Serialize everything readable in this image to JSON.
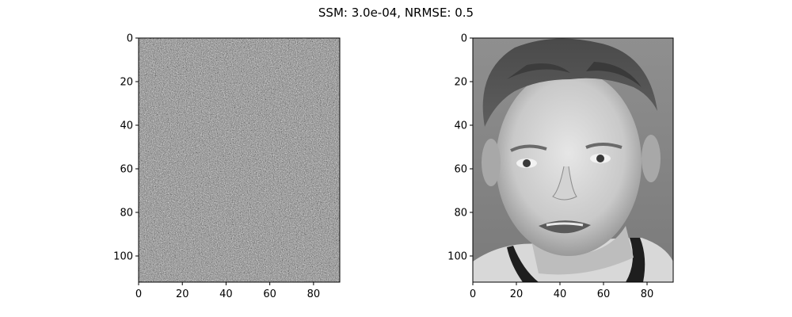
{
  "figure": {
    "title": "SSM: 3.0e-04, NRMSE: 0.5"
  },
  "chart_data": [
    {
      "type": "heatmap",
      "title": "",
      "xlabel": "",
      "ylabel": "",
      "content": "random grayscale noise",
      "colormap": "gray",
      "x_range": [
        0,
        92
      ],
      "y_range": [
        112,
        0
      ],
      "xticks": [
        0,
        20,
        40,
        60,
        80
      ],
      "yticks": [
        0,
        20,
        40,
        60,
        80,
        100
      ],
      "grid": false
    },
    {
      "type": "heatmap",
      "title": "",
      "xlabel": "",
      "ylabel": "",
      "content": "grayscale face photograph",
      "colormap": "gray",
      "x_range": [
        0,
        92
      ],
      "y_range": [
        112,
        0
      ],
      "xticks": [
        0,
        20,
        40,
        60,
        80
      ],
      "yticks": [
        0,
        20,
        40,
        60,
        80,
        100
      ],
      "grid": false
    }
  ]
}
